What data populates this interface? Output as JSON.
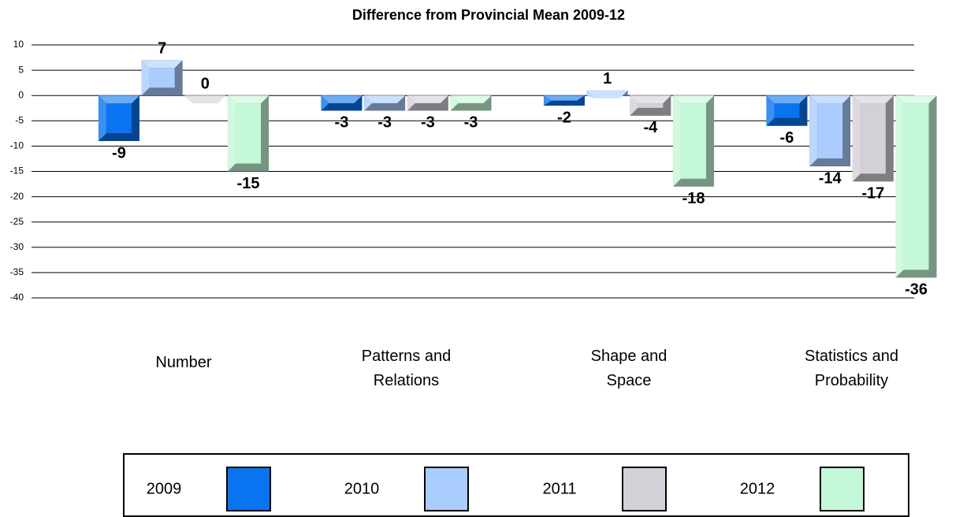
{
  "chart_data": {
    "type": "bar",
    "title": "Difference from Provincial Mean 2009-12",
    "categories": [
      "Number",
      "Patterns and Relations",
      "Shape and Space",
      "Statistics and Probability"
    ],
    "series": [
      {
        "name": "2009",
        "color": "#0a74f0",
        "values": [
          -9,
          -3,
          -2,
          -6
        ]
      },
      {
        "name": "2010",
        "color": "#aaccff",
        "values": [
          7,
          -3,
          1,
          -14
        ]
      },
      {
        "name": "2011",
        "color": "#d4d0d8",
        "values": [
          0,
          -3,
          -4,
          -17
        ]
      },
      {
        "name": "2012",
        "color": "#c4f8d8",
        "values": [
          -15,
          -3,
          -18,
          -36
        ]
      }
    ],
    "ylim": [
      -40,
      10
    ],
    "yticks": [
      -40,
      -35,
      -30,
      -25,
      -20,
      -15,
      -10,
      -5,
      0,
      5,
      10
    ],
    "grid": true,
    "legend": "bottom"
  }
}
